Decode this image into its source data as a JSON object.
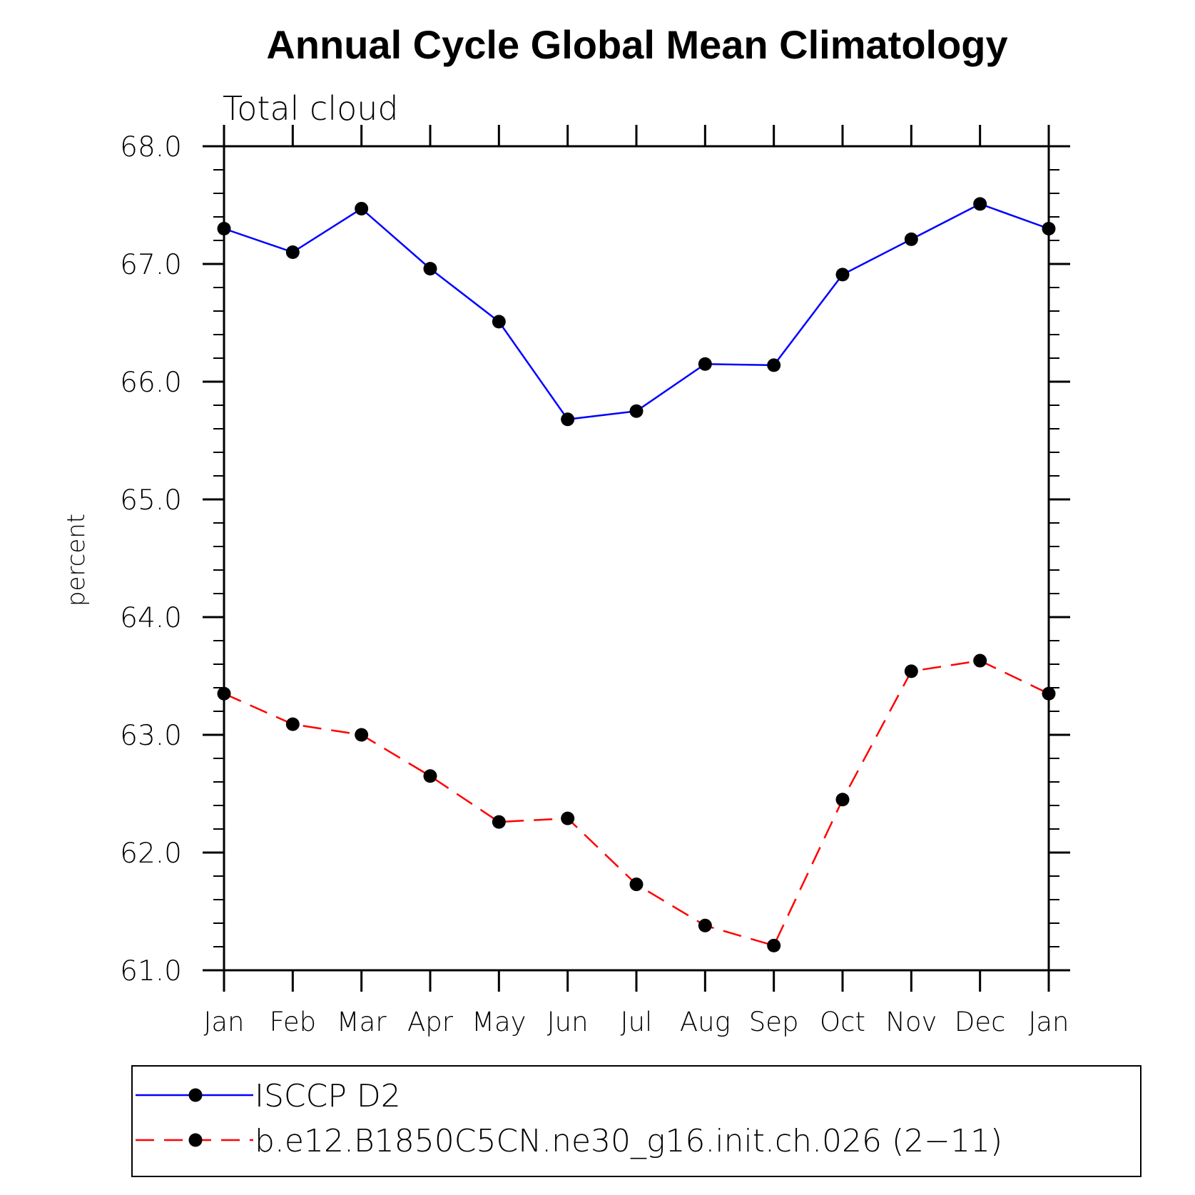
{
  "chart_data": {
    "type": "line",
    "title": "Annual Cycle Global Mean Climatology",
    "subtitle": "Total cloud",
    "xlabel": "",
    "ylabel": "percent",
    "categories": [
      "Jan",
      "Feb",
      "Mar",
      "Apr",
      "May",
      "Jun",
      "Jul",
      "Aug",
      "Sep",
      "Oct",
      "Nov",
      "Dec",
      "Jan"
    ],
    "ylim": [
      61.0,
      68.0
    ],
    "yticks": [
      "61.0",
      "62.0",
      "63.0",
      "64.0",
      "65.0",
      "66.0",
      "67.0",
      "68.0"
    ],
    "grid": false,
    "legend_position": "bottom",
    "series": [
      {
        "name": "ISCCP D2",
        "color": "#0000ff",
        "line_style": "solid",
        "marker": "filled-circle",
        "values": [
          67.3,
          67.1,
          67.47,
          66.96,
          66.51,
          65.68,
          65.75,
          66.15,
          66.14,
          66.91,
          67.21,
          67.51,
          67.3
        ]
      },
      {
        "name": "b.e12.B1850C5CN.ne30_g16.init.ch.026 (2−11)",
        "color": "#ff0000",
        "line_style": "dashed",
        "marker": "filled-circle",
        "values": [
          63.35,
          63.09,
          63.0,
          62.65,
          62.26,
          62.29,
          61.73,
          61.38,
          61.21,
          62.45,
          63.54,
          63.63,
          63.35
        ]
      }
    ]
  }
}
